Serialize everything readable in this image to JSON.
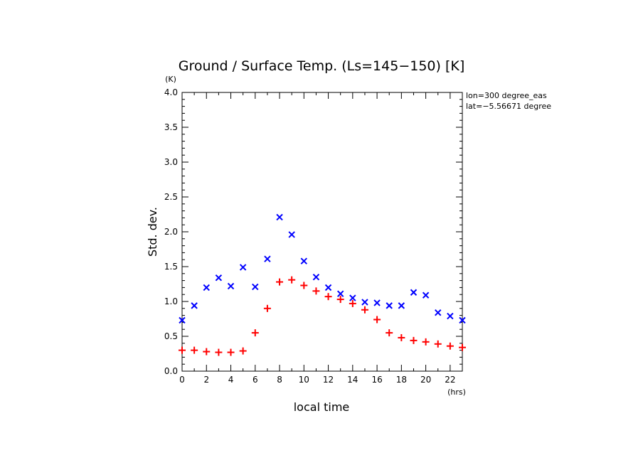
{
  "chart_data": {
    "type": "scatter",
    "title": "Ground / Surface Temp. (Ls=145−150) [K]",
    "xlabel": "local time",
    "ylabel": "Std. dev.",
    "x_unit": "(hrs)",
    "y_unit": "(K)",
    "xlim": [
      0,
      23
    ],
    "ylim": [
      0,
      4
    ],
    "x_ticks": [
      "0",
      "2",
      "4",
      "6",
      "8",
      "10",
      "12",
      "14",
      "16",
      "18",
      "20",
      "22"
    ],
    "y_ticks": [
      "0.0",
      "0.5",
      "1.0",
      "1.5",
      "2.0",
      "2.5",
      "3.0",
      "3.5",
      "4.0"
    ],
    "annotations": [
      "lon=300 degree_eas",
      "lat=−5.56671 degree"
    ],
    "grid": false,
    "legend": "none",
    "x": [
      0,
      1,
      2,
      3,
      4,
      5,
      6,
      7,
      8,
      9,
      10,
      11,
      12,
      13,
      14,
      15,
      16,
      17,
      18,
      19,
      20,
      21,
      22,
      23
    ],
    "series": [
      {
        "marker": "x",
        "color": "#0000ff",
        "values": [
          0.73,
          0.94,
          1.2,
          1.34,
          1.22,
          1.49,
          1.21,
          1.61,
          2.21,
          1.96,
          1.58,
          1.35,
          1.2,
          1.11,
          1.05,
          0.99,
          0.98,
          0.94,
          0.94,
          1.13,
          1.09,
          0.84,
          0.79,
          0.73
        ]
      },
      {
        "marker": "+",
        "color": "#ff0000",
        "values": [
          0.3,
          0.3,
          0.28,
          0.27,
          0.27,
          0.29,
          0.55,
          0.9,
          1.28,
          1.31,
          1.23,
          1.15,
          1.07,
          1.03,
          0.97,
          0.88,
          0.74,
          0.55,
          0.48,
          0.44,
          0.42,
          0.39,
          0.36,
          0.34
        ]
      }
    ]
  }
}
